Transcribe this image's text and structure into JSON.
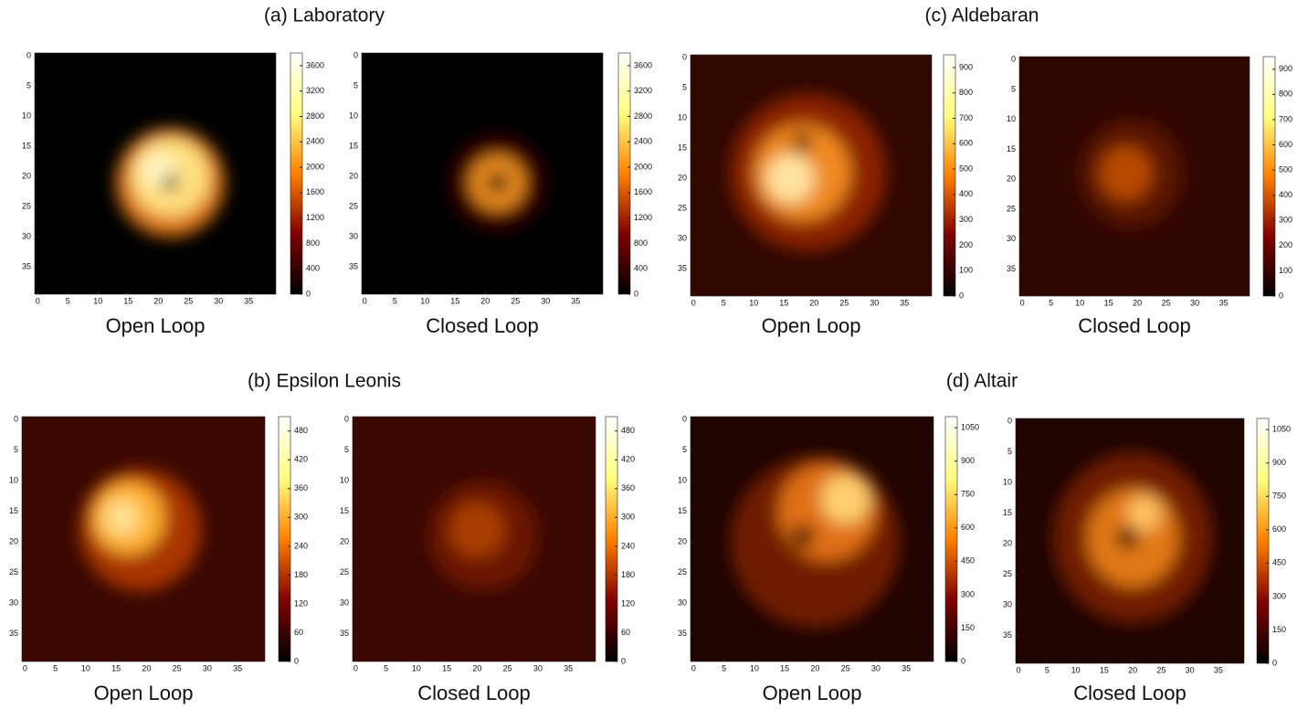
{
  "chart_data": [
    {
      "type": "heatmap",
      "title": "(a) Laboratory",
      "panels": [
        {
          "xlabel": "Open Loop",
          "xlim": [
            -0.5,
            39.5
          ],
          "xticks": [
            0,
            5,
            10,
            15,
            20,
            25,
            30,
            35
          ],
          "ylim": [
            39.5,
            -0.5
          ],
          "yticks": [
            0,
            5,
            10,
            15,
            20,
            25,
            30,
            35
          ],
          "clim": [
            0,
            3800
          ],
          "cticks": [
            0,
            400,
            800,
            1200,
            1600,
            2000,
            2400,
            2800,
            3200,
            3600
          ]
        },
        {
          "xlabel": "Closed Loop",
          "xlim": [
            -0.5,
            39.5
          ],
          "xticks": [
            0,
            5,
            10,
            15,
            20,
            25,
            30,
            35
          ],
          "ylim": [
            39.5,
            -0.5
          ],
          "yticks": [
            0,
            5,
            10,
            15,
            20,
            25,
            30,
            35
          ],
          "clim": [
            0,
            3800
          ],
          "cticks": [
            0,
            400,
            800,
            1200,
            1600,
            2000,
            2400,
            2800,
            3200,
            3600
          ]
        }
      ]
    },
    {
      "type": "heatmap",
      "title": "(b) Epsilon Leonis",
      "panels": [
        {
          "xlabel": "Open Loop",
          "xlim": [
            -0.5,
            39.5
          ],
          "xticks": [
            0,
            5,
            10,
            15,
            20,
            25,
            30,
            35
          ],
          "ylim": [
            39.5,
            -0.5
          ],
          "yticks": [
            0,
            5,
            10,
            15,
            20,
            25,
            30,
            35
          ],
          "clim": [
            0,
            510
          ],
          "cticks": [
            0,
            60,
            120,
            180,
            240,
            300,
            360,
            420,
            480
          ]
        },
        {
          "xlabel": "Closed Loop",
          "xlim": [
            -0.5,
            39.5
          ],
          "xticks": [
            0,
            5,
            10,
            15,
            20,
            25,
            30,
            35
          ],
          "ylim": [
            39.5,
            -0.5
          ],
          "yticks": [
            0,
            5,
            10,
            15,
            20,
            25,
            30,
            35
          ],
          "clim": [
            0,
            510
          ],
          "cticks": [
            0,
            60,
            120,
            180,
            240,
            300,
            360,
            420,
            480
          ]
        }
      ]
    },
    {
      "type": "heatmap",
      "title": "(c) Aldebaran",
      "panels": [
        {
          "xlabel": "Open Loop",
          "xlim": [
            -0.5,
            39.5
          ],
          "xticks": [
            0,
            5,
            10,
            15,
            20,
            25,
            30,
            35
          ],
          "ylim": [
            39.5,
            -0.5
          ],
          "yticks": [
            0,
            5,
            10,
            15,
            20,
            25,
            30,
            35
          ],
          "clim": [
            0,
            950
          ],
          "cticks": [
            0,
            100,
            200,
            300,
            400,
            500,
            600,
            700,
            800,
            900
          ]
        },
        {
          "xlabel": "Closed Loop",
          "xlim": [
            -0.5,
            39.5
          ],
          "xticks": [
            0,
            5,
            10,
            15,
            20,
            25,
            30,
            35
          ],
          "ylim": [
            39.5,
            -0.5
          ],
          "yticks": [
            0,
            5,
            10,
            15,
            20,
            25,
            30,
            35
          ],
          "clim": [
            0,
            950
          ],
          "cticks": [
            0,
            100,
            200,
            300,
            400,
            500,
            600,
            700,
            800,
            900
          ]
        }
      ]
    },
    {
      "type": "heatmap",
      "title": "(d) Altair",
      "panels": [
        {
          "xlabel": "Open Loop",
          "xlim": [
            -0.5,
            39.5
          ],
          "xticks": [
            0,
            5,
            10,
            15,
            20,
            25,
            30,
            35
          ],
          "ylim": [
            39.5,
            -0.5
          ],
          "yticks": [
            0,
            5,
            10,
            15,
            20,
            25,
            30,
            35
          ],
          "clim": [
            0,
            1100
          ],
          "cticks": [
            0,
            150,
            300,
            450,
            600,
            750,
            900,
            1050
          ]
        },
        {
          "xlabel": "Closed Loop",
          "xlim": [
            -0.5,
            39.5
          ],
          "xticks": [
            0,
            5,
            10,
            15,
            20,
            25,
            30,
            35
          ],
          "ylim": [
            39.5,
            -0.5
          ],
          "yticks": [
            0,
            5,
            10,
            15,
            20,
            25,
            30,
            35
          ],
          "clim": [
            0,
            1100
          ],
          "cticks": [
            0,
            150,
            300,
            450,
            600,
            750,
            900,
            1050
          ]
        }
      ]
    }
  ]
}
